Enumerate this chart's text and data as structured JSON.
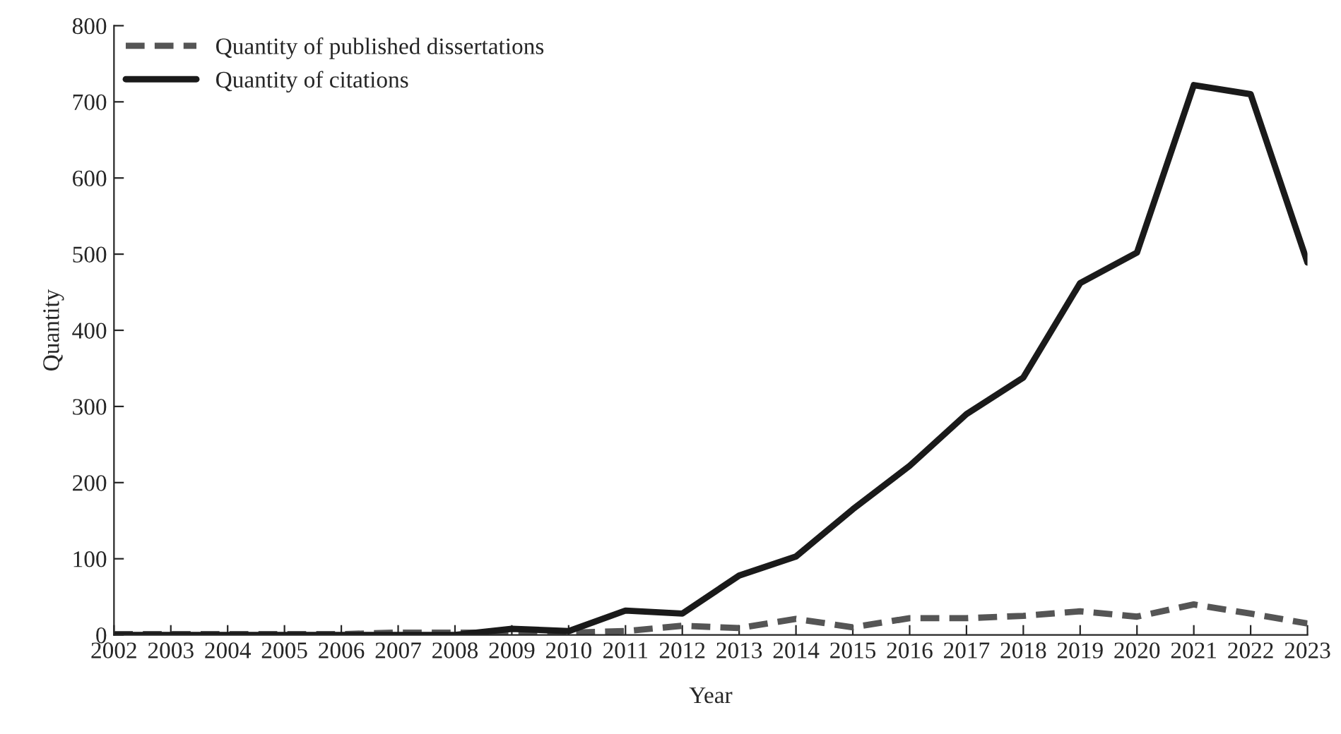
{
  "chart_data": {
    "type": "line",
    "xlabel": "Year",
    "ylabel": "Quantity",
    "categories": [
      "2002",
      "2003",
      "2004",
      "2005",
      "2006",
      "2007",
      "2008",
      "2009",
      "2010",
      "2011",
      "2012",
      "2013",
      "2014",
      "2015",
      "2016",
      "2017",
      "2018",
      "2019",
      "2020",
      "2021",
      "2022",
      "2023"
    ],
    "series": [
      {
        "name": "Quantity of published dissertations",
        "color": "#555555",
        "line_style": "dashed",
        "values": [
          1,
          1,
          1,
          1,
          1,
          3,
          3,
          3,
          3,
          5,
          12,
          9,
          21,
          10,
          22,
          22,
          25,
          31,
          24,
          40,
          28,
          15
        ]
      },
      {
        "name": "Quantity of citations",
        "color": "#1a1a1a",
        "line_style": "solid",
        "values": [
          0,
          0,
          0,
          0,
          0,
          0,
          0,
          8,
          5,
          32,
          28,
          78,
          103,
          165,
          222,
          290,
          338,
          462,
          502,
          722,
          710,
          489
        ]
      }
    ],
    "ylim": [
      0,
      800
    ],
    "yticks": [
      0,
      100,
      200,
      300,
      400,
      500,
      600,
      700,
      800
    ],
    "grid": false,
    "legend": "top left",
    "marker": "none"
  }
}
